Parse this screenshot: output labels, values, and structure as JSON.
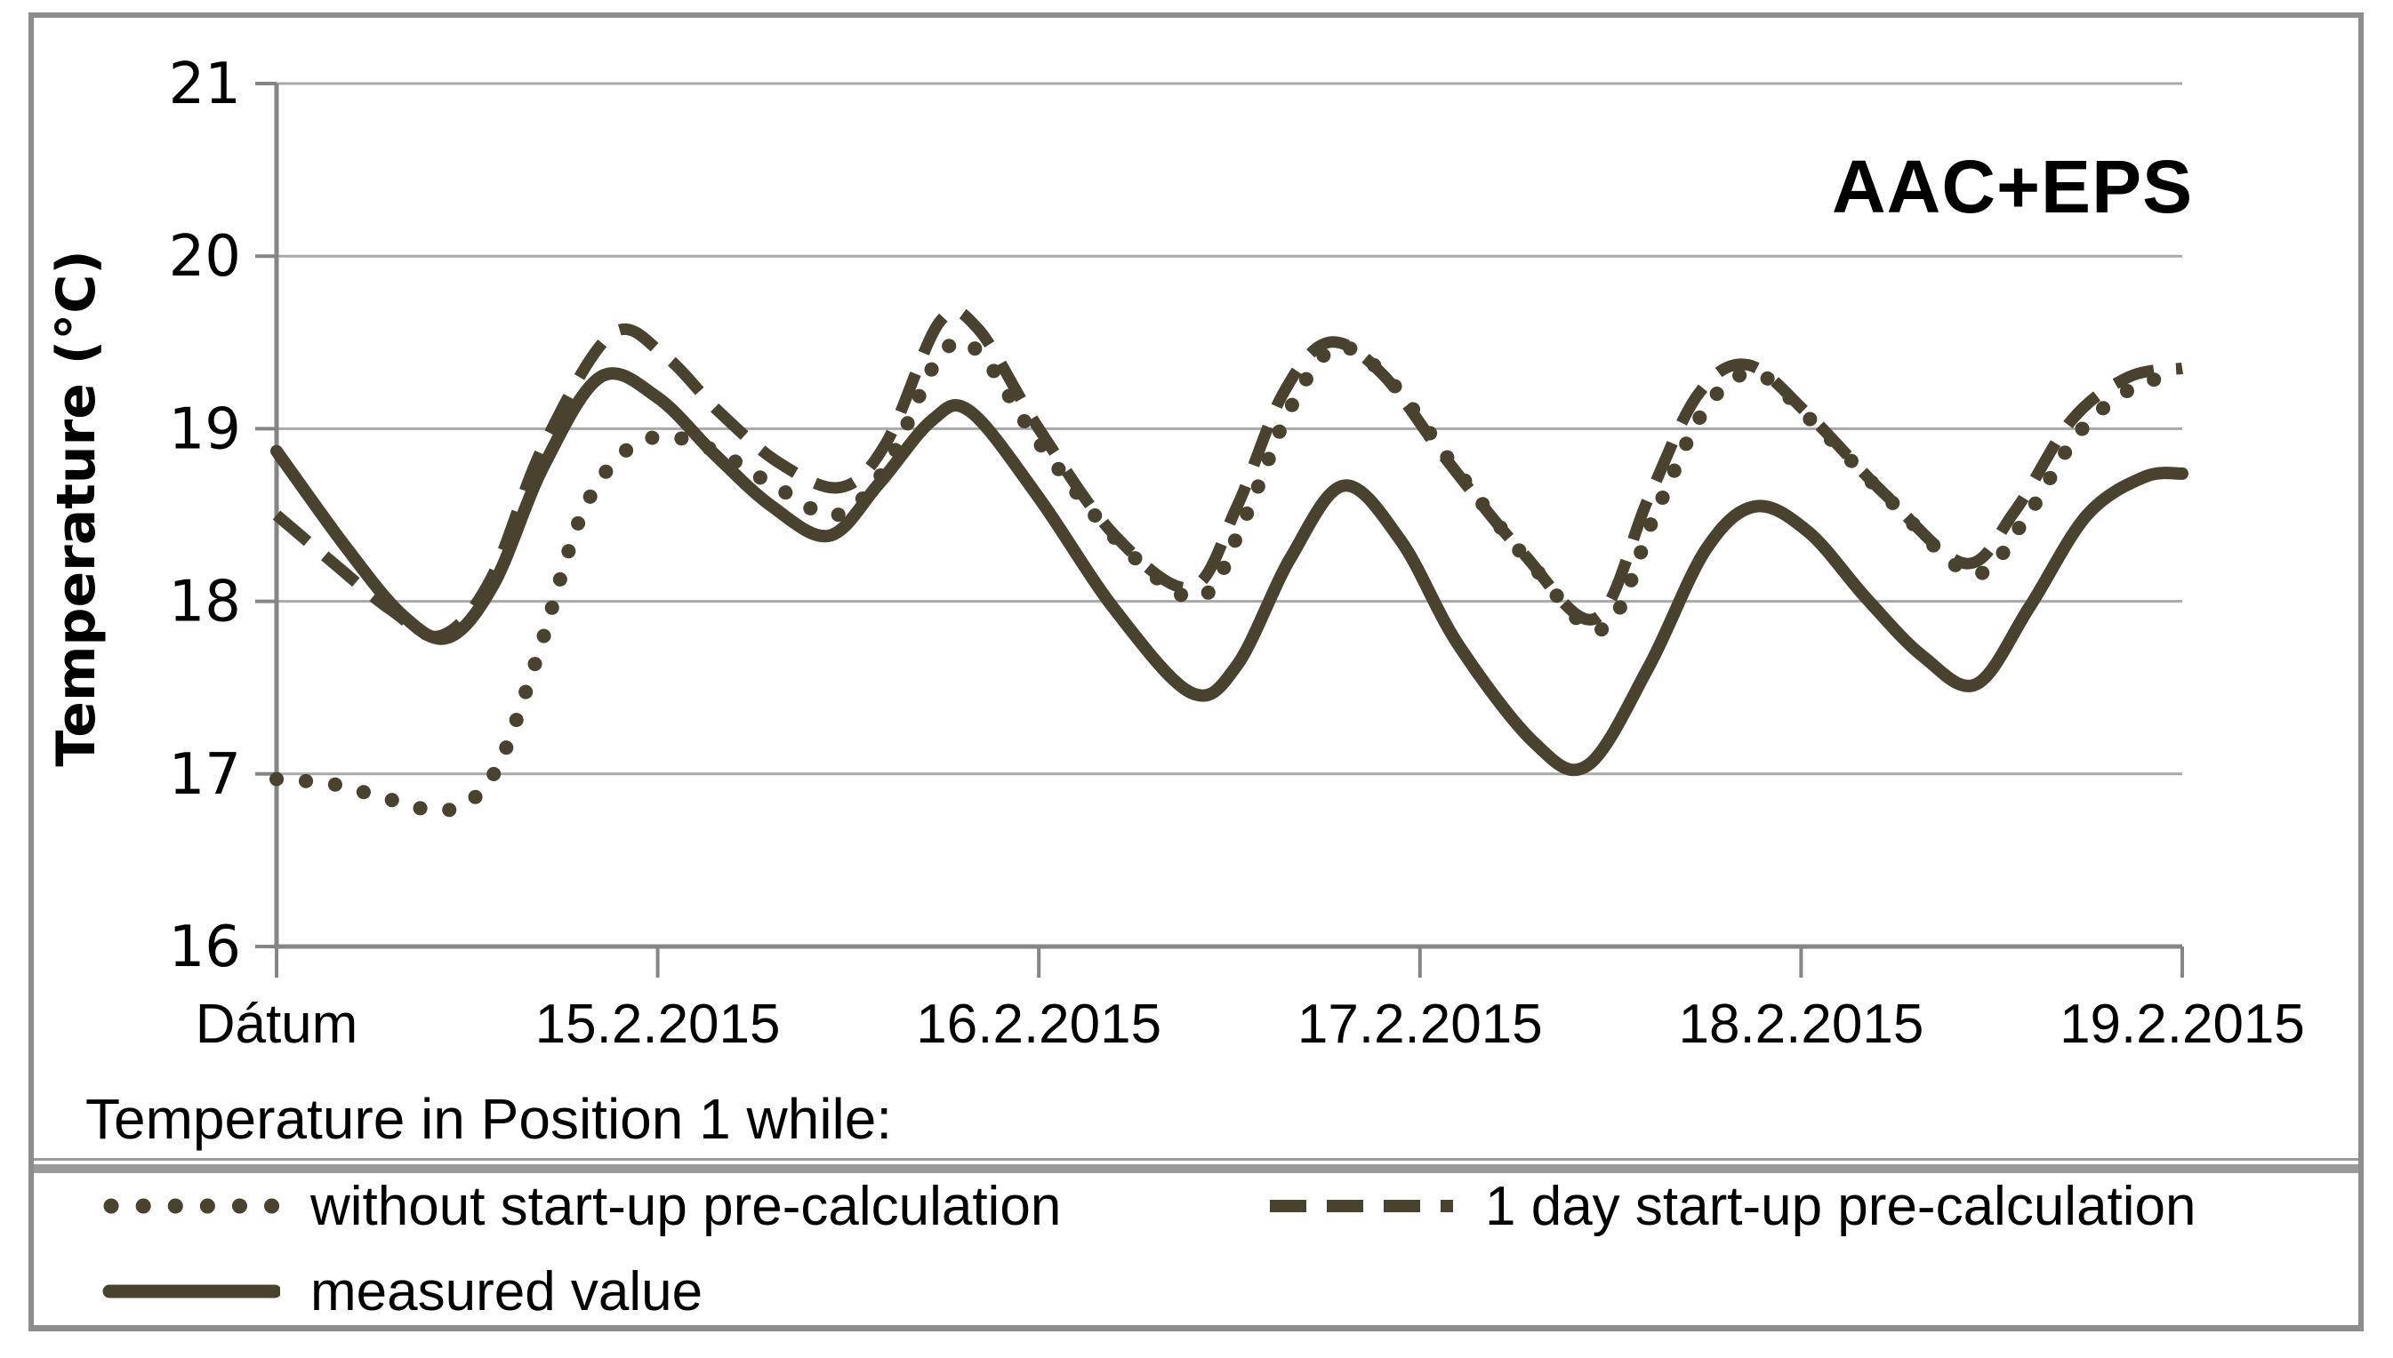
{
  "figure": {
    "corner_label": "AAC+EPS"
  },
  "chart_data": {
    "type": "line",
    "title": "AAC+EPS",
    "x_axis": {
      "unit": "days after first tick (Dátum = 14.2.2015)",
      "tick_labels": [
        "Dátum",
        "15.2.2015",
        "16.2.2015",
        "17.2.2015",
        "18.2.2015",
        "19.2.2015"
      ],
      "tick_days": [
        0,
        1,
        2,
        3,
        4,
        5
      ]
    },
    "y_axis": {
      "title": "Temperature (°C)",
      "min": 16,
      "max": 21,
      "ticks": [
        21,
        20,
        19,
        18,
        17,
        16
      ]
    },
    "grid": "horizontal",
    "legend_position": "bottom",
    "series": [
      {
        "name": "1 day start-up pre-calculation",
        "style": "dashed",
        "points": [
          [
            0,
            18.5
          ],
          [
            0.15,
            18.22
          ],
          [
            0.3,
            17.95
          ],
          [
            0.43,
            17.8
          ],
          [
            0.56,
            18.12
          ],
          [
            0.7,
            18.9
          ],
          [
            0.88,
            19.55
          ],
          [
            1.02,
            19.42
          ],
          [
            1.16,
            19.1
          ],
          [
            1.32,
            18.8
          ],
          [
            1.48,
            18.66
          ],
          [
            1.6,
            18.92
          ],
          [
            1.74,
            19.62
          ],
          [
            1.84,
            19.58
          ],
          [
            2.0,
            19.0
          ],
          [
            2.2,
            18.38
          ],
          [
            2.4,
            18.08
          ],
          [
            2.52,
            18.55
          ],
          [
            2.64,
            19.2
          ],
          [
            2.76,
            19.5
          ],
          [
            2.9,
            19.32
          ],
          [
            3.07,
            18.82
          ],
          [
            3.27,
            18.28
          ],
          [
            3.46,
            17.9
          ],
          [
            3.6,
            18.6
          ],
          [
            3.73,
            19.2
          ],
          [
            3.86,
            19.37
          ],
          [
            4.02,
            19.08
          ],
          [
            4.22,
            18.62
          ],
          [
            4.43,
            18.22
          ],
          [
            4.56,
            18.52
          ],
          [
            4.71,
            19.05
          ],
          [
            4.86,
            19.3
          ],
          [
            5.0,
            19.35
          ]
        ]
      },
      {
        "name": "without start-up pre-calculation",
        "style": "dotted",
        "points": [
          [
            0,
            16.97
          ],
          [
            0.15,
            16.94
          ],
          [
            0.3,
            16.85
          ],
          [
            0.45,
            16.79
          ],
          [
            0.57,
            17.0
          ],
          [
            0.68,
            17.65
          ],
          [
            0.8,
            18.5
          ],
          [
            0.92,
            18.88
          ],
          [
            1.04,
            18.95
          ],
          [
            1.17,
            18.85
          ],
          [
            1.32,
            18.65
          ],
          [
            1.47,
            18.5
          ],
          [
            1.6,
            18.78
          ],
          [
            1.74,
            19.42
          ],
          [
            1.84,
            19.45
          ],
          [
            2.0,
            18.92
          ],
          [
            2.22,
            18.32
          ],
          [
            2.42,
            18.02
          ],
          [
            2.54,
            18.48
          ],
          [
            2.66,
            19.12
          ],
          [
            2.78,
            19.47
          ],
          [
            2.92,
            19.28
          ],
          [
            3.09,
            18.78
          ],
          [
            3.29,
            18.22
          ],
          [
            3.48,
            17.84
          ],
          [
            3.62,
            18.52
          ],
          [
            3.75,
            19.12
          ],
          [
            3.88,
            19.32
          ],
          [
            4.04,
            19.02
          ],
          [
            4.24,
            18.57
          ],
          [
            4.45,
            18.16
          ],
          [
            4.58,
            18.45
          ],
          [
            4.73,
            18.98
          ],
          [
            4.88,
            19.25
          ],
          [
            5.0,
            19.3
          ]
        ]
      },
      {
        "name": "measured value",
        "style": "solid",
        "points": [
          [
            0,
            18.87
          ],
          [
            0.18,
            18.32
          ],
          [
            0.33,
            17.92
          ],
          [
            0.45,
            17.79
          ],
          [
            0.57,
            18.1
          ],
          [
            0.7,
            18.78
          ],
          [
            0.85,
            19.3
          ],
          [
            1.0,
            19.18
          ],
          [
            1.15,
            18.85
          ],
          [
            1.3,
            18.55
          ],
          [
            1.45,
            18.38
          ],
          [
            1.58,
            18.68
          ],
          [
            1.72,
            19.05
          ],
          [
            1.82,
            19.1
          ],
          [
            2.0,
            18.6
          ],
          [
            2.2,
            17.95
          ],
          [
            2.4,
            17.47
          ],
          [
            2.52,
            17.63
          ],
          [
            2.66,
            18.25
          ],
          [
            2.8,
            18.67
          ],
          [
            2.95,
            18.35
          ],
          [
            3.1,
            17.75
          ],
          [
            3.3,
            17.18
          ],
          [
            3.44,
            17.05
          ],
          [
            3.6,
            17.62
          ],
          [
            3.75,
            18.3
          ],
          [
            3.88,
            18.55
          ],
          [
            4.02,
            18.4
          ],
          [
            4.17,
            18.02
          ],
          [
            4.32,
            17.68
          ],
          [
            4.46,
            17.52
          ],
          [
            4.6,
            17.97
          ],
          [
            4.75,
            18.5
          ],
          [
            4.9,
            18.72
          ],
          [
            5.0,
            18.74
          ]
        ]
      }
    ]
  },
  "legend": {
    "title": "Temperature in Position 1 while:",
    "items": [
      {
        "label": "without start-up pre-calculation",
        "style": "dotted"
      },
      {
        "label": "1 day start-up pre-calculation",
        "style": "dashed"
      },
      {
        "label": "measured value",
        "style": "solid"
      }
    ]
  },
  "colors": {
    "line": "#48422e",
    "grid": "#a9a9a9",
    "axis": "#858585",
    "border": "#8d8d8d",
    "separator": "#9a9a9a",
    "text": "#000000"
  }
}
